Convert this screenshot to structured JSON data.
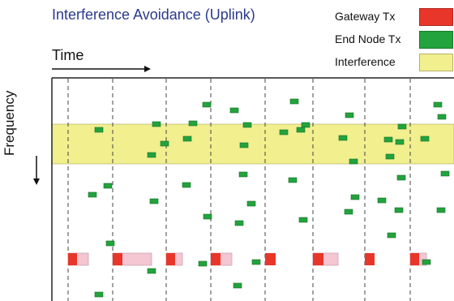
{
  "title": "Interference Avoidance (Uplink)",
  "axes": {
    "time_label": "Time",
    "frequency_label": "Frequency"
  },
  "legend": [
    {
      "key": "gateway",
      "label": "Gateway Tx",
      "color": "#e8362a"
    },
    {
      "key": "endnode",
      "label": "End Node Tx",
      "color": "#22a33d"
    },
    {
      "key": "interference",
      "label": "Interference",
      "color": "#f1ef8e"
    }
  ],
  "colors": {
    "gateway_tx": "#e8362a",
    "gateway_tx_trail": "#f3c6d2",
    "end_node_tx": "#22a33d",
    "interference_band": "#f1ef8e",
    "slot_line": "#444444",
    "frame": "#222222",
    "title": "#2b3a8c"
  }
}
